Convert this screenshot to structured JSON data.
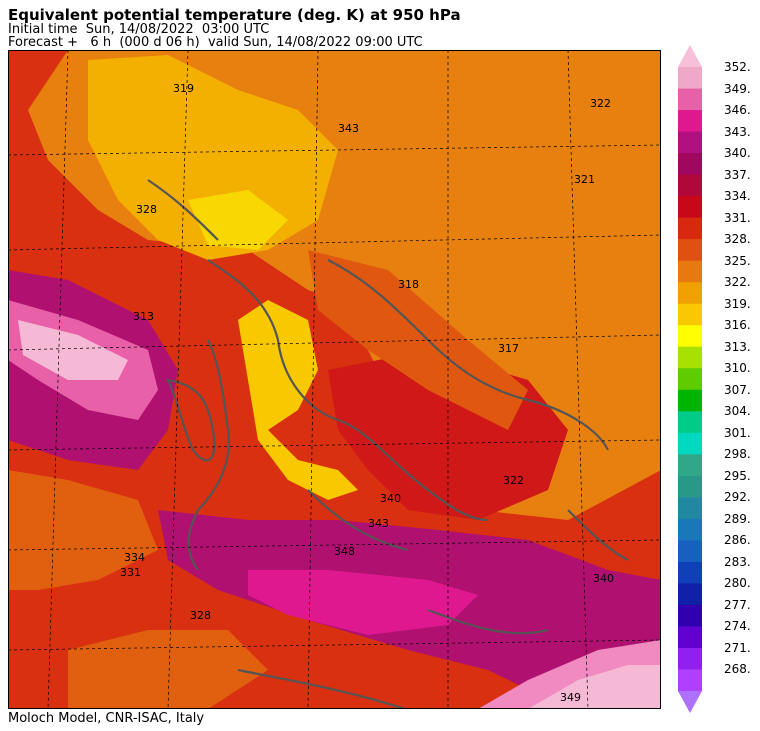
{
  "header": {
    "title": "Equivalent potential temperature (deg. K) at 950 hPa",
    "initial": "Initial time  Sun, 14/08/2022  03:00 UTC",
    "forecast": "Forecast +   6 h  (000 d 06 h)  valid Sun, 14/08/2022 09:00 UTC"
  },
  "footer": "Moloch Model, CNR-ISAC, Italy",
  "colorbar": {
    "labels": [
      "352.",
      "349.",
      "346.",
      "343.",
      "340.",
      "337.",
      "334.",
      "331.",
      "328.",
      "325.",
      "322.",
      "319.",
      "316.",
      "313.",
      "310.",
      "307.",
      "304.",
      "301.",
      "298.",
      "295.",
      "292.",
      "289.",
      "286.",
      "283.",
      "280.",
      "277.",
      "274.",
      "271.",
      "268."
    ],
    "colors": [
      "#f0a8c8",
      "#e860a8",
      "#e01890",
      "#b01080",
      "#a00860",
      "#b00838",
      "#c80818",
      "#d82810",
      "#e05010",
      "#e87810",
      "#f0a000",
      "#f8c800",
      "#ffff00",
      "#a8e000",
      "#60cc00",
      "#00b400",
      "#00cc88",
      "#00d8c0",
      "#30a888",
      "#289888",
      "#2088a0",
      "#1878b8",
      "#1860c0",
      "#1040b8",
      "#1020a8",
      "#3000b0",
      "#6000d0",
      "#9020f0",
      "#b040ff"
    ],
    "top_arrow_color": "#f8c0d8",
    "bottom_arrow_color": "#b070ff"
  },
  "map": {
    "contour_labels": [
      "319",
      "322",
      "321",
      "318",
      "317",
      "328",
      "343",
      "340",
      "322",
      "348",
      "343",
      "331",
      "334",
      "328",
      "340",
      "349",
      "313"
    ]
  }
}
